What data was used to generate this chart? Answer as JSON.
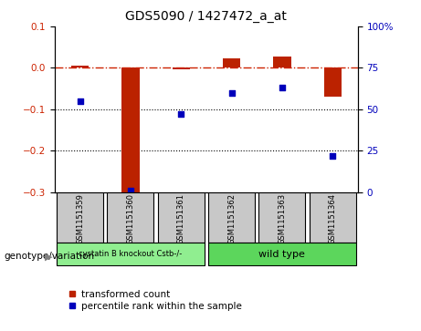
{
  "title": "GDS5090 / 1427472_a_at",
  "samples": [
    "GSM1151359",
    "GSM1151360",
    "GSM1151361",
    "GSM1151362",
    "GSM1151363",
    "GSM1151364"
  ],
  "transformed_count": [
    0.005,
    -0.305,
    -0.003,
    0.022,
    0.028,
    -0.07
  ],
  "percentile_rank": [
    55,
    1,
    47,
    60,
    63,
    22
  ],
  "ylim_left": [
    -0.3,
    0.1
  ],
  "ylim_right": [
    0,
    100
  ],
  "yticks_left": [
    0.1,
    0,
    -0.1,
    -0.2,
    -0.3
  ],
  "yticks_right": [
    100,
    75,
    50,
    25,
    0
  ],
  "groups": [
    {
      "label": "cystatin B knockout Cstb-/-",
      "indices": [
        0,
        1,
        2
      ],
      "color": "#90EE90"
    },
    {
      "label": "wild type",
      "indices": [
        3,
        4,
        5
      ],
      "color": "#5CD65C"
    }
  ],
  "bar_color": "#BB2200",
  "dot_color": "#0000BB",
  "hline_color": "#CC2200",
  "dotted_line_color": "#000000",
  "bg_color": "#FFFFFF",
  "legend_red_label": "transformed count",
  "legend_blue_label": "percentile rank within the sample",
  "genotype_label": "genotype/variation",
  "bar_width": 0.35,
  "group_box_color": "#C0C0C0",
  "sample_box_color": "#C8C8C8"
}
